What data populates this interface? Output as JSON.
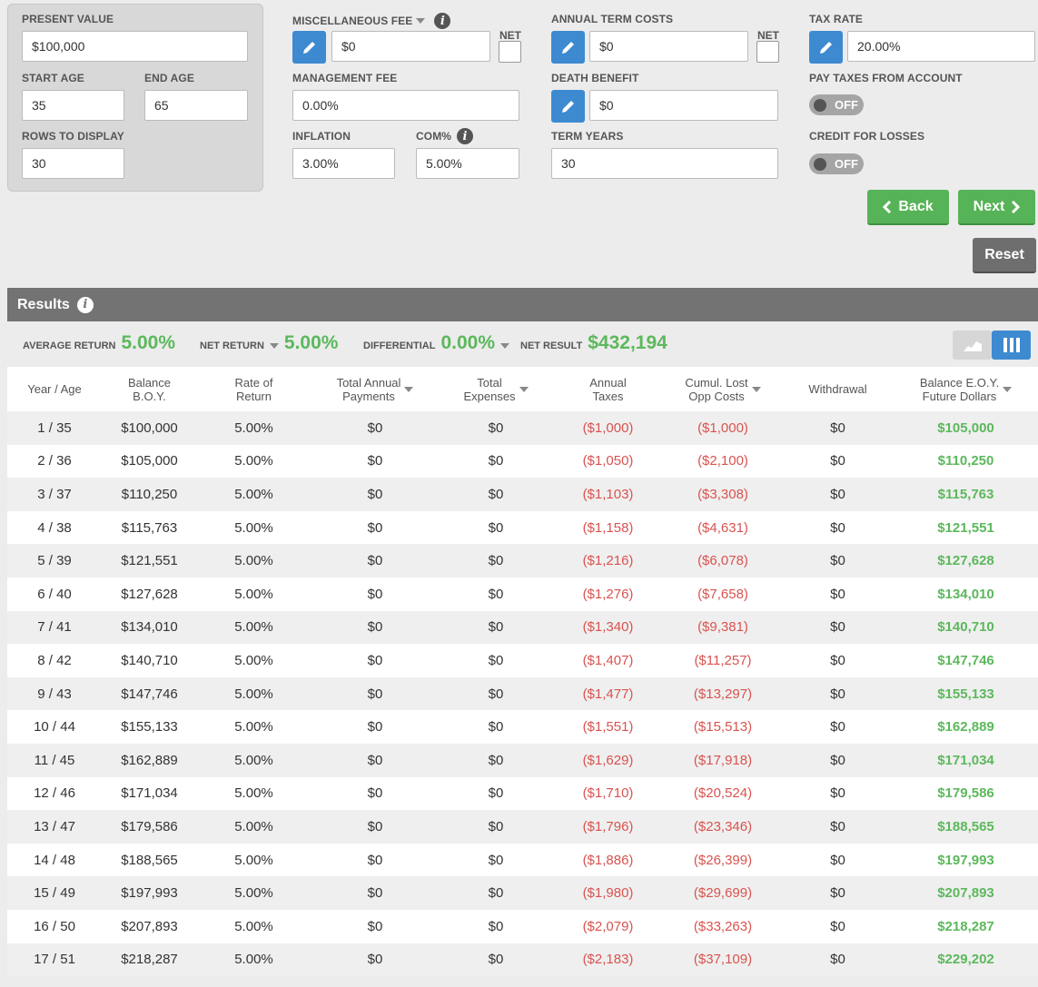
{
  "inputs": {
    "present_value": {
      "label": "PRESENT VALUE",
      "value": "$100,000"
    },
    "start_age": {
      "label": "START AGE",
      "value": "35"
    },
    "end_age": {
      "label": "END AGE",
      "value": "65"
    },
    "rows_to_display": {
      "label": "ROWS TO DISPLAY",
      "value": "30"
    },
    "misc_fee": {
      "label": "MISCELLANEOUS FEE",
      "value": "$0",
      "net_label": "NET"
    },
    "management_fee": {
      "label": "MANAGEMENT FEE",
      "value": "0.00%"
    },
    "inflation": {
      "label": "INFLATION",
      "value": "3.00%"
    },
    "com": {
      "label": "COM%",
      "value": "5.00%"
    },
    "annual_term_costs": {
      "label": "ANNUAL TERM COSTS",
      "value": "$0",
      "net_label": "NET"
    },
    "death_benefit": {
      "label": "DEATH BENEFIT",
      "value": "$0"
    },
    "term_years": {
      "label": "TERM YEARS",
      "value": "30"
    },
    "tax_rate": {
      "label": "TAX RATE",
      "value": "20.00%"
    },
    "pay_taxes": {
      "label": "PAY TAXES FROM ACCOUNT",
      "state": "OFF"
    },
    "credit_losses": {
      "label": "CREDIT FOR LOSSES",
      "state": "OFF"
    }
  },
  "buttons": {
    "back": "Back",
    "next": "Next",
    "reset": "Reset"
  },
  "results": {
    "title": "Results",
    "average_return": {
      "label": "AVERAGE RETURN",
      "value": "5.00%"
    },
    "net_return": {
      "label": "NET RETURN",
      "value": "5.00%"
    },
    "differential": {
      "label": "DIFFERENTIAL",
      "value": "0.00%"
    },
    "net_result": {
      "label": "NET RESULT",
      "value": "$432,194"
    }
  },
  "colors": {
    "accent_blue": "#3d8ad1",
    "positive": "#5cb85c",
    "negative": "#d9534f",
    "button_green": "#57b357"
  },
  "table": {
    "headers": [
      {
        "line1": "Year / Age",
        "line2": "",
        "sortable": false
      },
      {
        "line1": "Balance",
        "line2": "B.O.Y.",
        "sortable": false
      },
      {
        "line1": "Rate of",
        "line2": "Return",
        "sortable": false
      },
      {
        "line1": "Total Annual",
        "line2": "Payments",
        "sortable": true
      },
      {
        "line1": "Total",
        "line2": "Expenses",
        "sortable": true
      },
      {
        "line1": "Annual",
        "line2": "Taxes",
        "sortable": false
      },
      {
        "line1": "Cumul. Lost",
        "line2": "Opp Costs",
        "sortable": true
      },
      {
        "line1": "Withdrawal",
        "line2": "",
        "sortable": false
      },
      {
        "line1": "Balance E.O.Y.",
        "line2": "Future Dollars",
        "sortable": true
      }
    ],
    "rows": [
      [
        "1 / 35",
        "$100,000",
        "5.00%",
        "$0",
        "$0",
        "($1,000)",
        "($1,000)",
        "$0",
        "$105,000"
      ],
      [
        "2 / 36",
        "$105,000",
        "5.00%",
        "$0",
        "$0",
        "($1,050)",
        "($2,100)",
        "$0",
        "$110,250"
      ],
      [
        "3 / 37",
        "$110,250",
        "5.00%",
        "$0",
        "$0",
        "($1,103)",
        "($3,308)",
        "$0",
        "$115,763"
      ],
      [
        "4 / 38",
        "$115,763",
        "5.00%",
        "$0",
        "$0",
        "($1,158)",
        "($4,631)",
        "$0",
        "$121,551"
      ],
      [
        "5 / 39",
        "$121,551",
        "5.00%",
        "$0",
        "$0",
        "($1,216)",
        "($6,078)",
        "$0",
        "$127,628"
      ],
      [
        "6 / 40",
        "$127,628",
        "5.00%",
        "$0",
        "$0",
        "($1,276)",
        "($7,658)",
        "$0",
        "$134,010"
      ],
      [
        "7 / 41",
        "$134,010",
        "5.00%",
        "$0",
        "$0",
        "($1,340)",
        "($9,381)",
        "$0",
        "$140,710"
      ],
      [
        "8 / 42",
        "$140,710",
        "5.00%",
        "$0",
        "$0",
        "($1,407)",
        "($11,257)",
        "$0",
        "$147,746"
      ],
      [
        "9 / 43",
        "$147,746",
        "5.00%",
        "$0",
        "$0",
        "($1,477)",
        "($13,297)",
        "$0",
        "$155,133"
      ],
      [
        "10 / 44",
        "$155,133",
        "5.00%",
        "$0",
        "$0",
        "($1,551)",
        "($15,513)",
        "$0",
        "$162,889"
      ],
      [
        "11 / 45",
        "$162,889",
        "5.00%",
        "$0",
        "$0",
        "($1,629)",
        "($17,918)",
        "$0",
        "$171,034"
      ],
      [
        "12 / 46",
        "$171,034",
        "5.00%",
        "$0",
        "$0",
        "($1,710)",
        "($20,524)",
        "$0",
        "$179,586"
      ],
      [
        "13 / 47",
        "$179,586",
        "5.00%",
        "$0",
        "$0",
        "($1,796)",
        "($23,346)",
        "$0",
        "$188,565"
      ],
      [
        "14 / 48",
        "$188,565",
        "5.00%",
        "$0",
        "$0",
        "($1,886)",
        "($26,399)",
        "$0",
        "$197,993"
      ],
      [
        "15 / 49",
        "$197,993",
        "5.00%",
        "$0",
        "$0",
        "($1,980)",
        "($29,699)",
        "$0",
        "$207,893"
      ],
      [
        "16 / 50",
        "$207,893",
        "5.00%",
        "$0",
        "$0",
        "($2,079)",
        "($33,263)",
        "$0",
        "$218,287"
      ],
      [
        "17 / 51",
        "$218,287",
        "5.00%",
        "$0",
        "$0",
        "($2,183)",
        "($37,109)",
        "$0",
        "$229,202"
      ]
    ]
  }
}
